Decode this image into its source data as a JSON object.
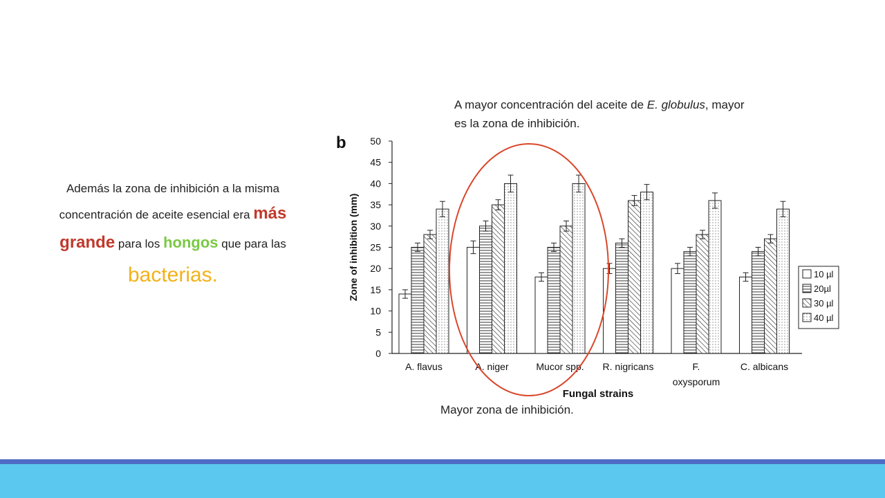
{
  "left_note": {
    "part1": "Además la zona de inhibición a la misma concentración de aceite esencial era ",
    "highlight1": "más grande",
    "part2": " para los ",
    "highlight2": "hongos",
    "part3": " que para las ",
    "highlight3": "bacterias."
  },
  "top_note": {
    "part1": "A mayor concentración del aceite de ",
    "italic": "E. globulus",
    "part2": ", mayor es la zona de inhibición."
  },
  "bottom_note": "Mayor zona de inhibición.",
  "colors": {
    "highlight_red": "#c0392b",
    "highlight_green": "#7ac943",
    "highlight_yellow": "#f2b21b",
    "ellipse": "#d9472b",
    "footer_blue": "#4f6cc4",
    "footer_cyan": "#5bc8ef"
  },
  "chart_data": {
    "type": "bar",
    "panel_label": "b",
    "xlabel": "Fungal strains",
    "ylabel": "Zone of inhibition (mm)",
    "ylim": [
      0,
      50
    ],
    "yticks": [
      0,
      5,
      10,
      15,
      20,
      25,
      30,
      35,
      40,
      45,
      50
    ],
    "categories": [
      "A. flavus",
      "A. niger",
      "Mucor spp.",
      "R. nigricans",
      "F. oxysporum",
      "C. albicans"
    ],
    "category_labels": [
      [
        "A. flavus"
      ],
      [
        "A. niger"
      ],
      [
        "Mucor spp."
      ],
      [
        "R. nigricans"
      ],
      [
        "F.",
        "oxysporum"
      ],
      [
        "C. albicans"
      ]
    ],
    "series": [
      {
        "name": "10 µl",
        "pattern": "blank",
        "values": [
          14,
          25,
          18,
          20,
          20,
          18
        ],
        "errors": [
          1,
          1.5,
          1,
          1.2,
          1.2,
          1
        ]
      },
      {
        "name": "20µl",
        "pattern": "hlines",
        "values": [
          25,
          30,
          25,
          26,
          24,
          24
        ],
        "errors": [
          1,
          1.2,
          1,
          1,
          1,
          1
        ]
      },
      {
        "name": "30 µl",
        "pattern": "diagonal",
        "values": [
          28,
          35,
          30,
          36,
          28,
          27
        ],
        "errors": [
          1,
          1.2,
          1.2,
          1.2,
          1,
          1
        ]
      },
      {
        "name": "40 µl",
        "pattern": "dots",
        "values": [
          34,
          40,
          40,
          38,
          36,
          34
        ],
        "errors": [
          1.8,
          2,
          2,
          1.8,
          1.8,
          1.8
        ]
      }
    ],
    "legend_position": "right",
    "highlighted_categories": [
      "A. niger",
      "Mucor spp."
    ]
  }
}
